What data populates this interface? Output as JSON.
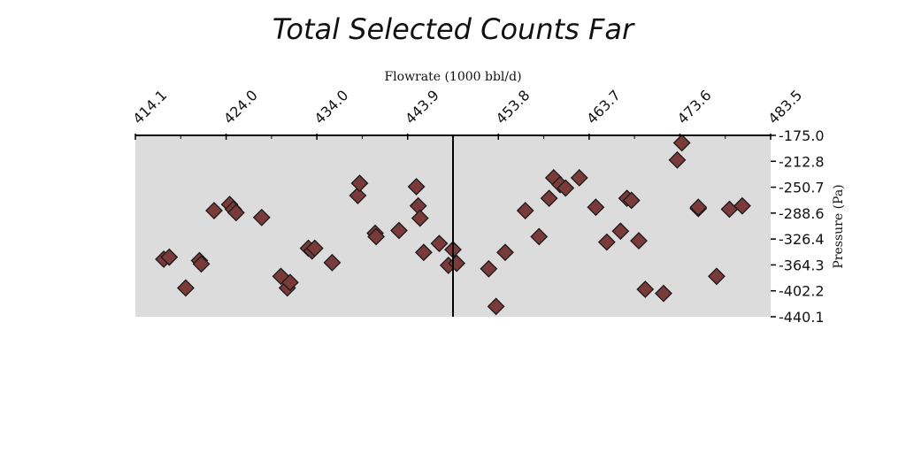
{
  "chart_data": {
    "type": "scatter",
    "title": "Total Selected Counts Far",
    "xlabel": "Flowrate (1000 bbl/d)",
    "ylabel": "Pressure (Pa)",
    "xlim": [
      414.1,
      483.5
    ],
    "ylim": [
      -440.1,
      -175.0
    ],
    "x_ticks": [
      "414.1",
      "424.0",
      "434.0",
      "443.9",
      "453.8",
      "463.7",
      "473.6",
      "483.5"
    ],
    "y_ticks": [
      "-175.0",
      "-212.8",
      "-250.7",
      "-288.6",
      "-326.4",
      "-364.3",
      "-402.2",
      "-440.1"
    ],
    "x_axis_position": "top",
    "y_axis_position": "right",
    "vline_x": 448.8,
    "marker": "diamond",
    "marker_color": "#7a3a3a",
    "marker_edge": "#1a1a1a",
    "plot_bg": "#dcdcdc",
    "points": [
      {
        "x": 417.2,
        "y": -356
      },
      {
        "x": 417.8,
        "y": -353
      },
      {
        "x": 419.6,
        "y": -398
      },
      {
        "x": 421.1,
        "y": -358
      },
      {
        "x": 421.3,
        "y": -363
      },
      {
        "x": 422.7,
        "y": -285
      },
      {
        "x": 424.4,
        "y": -276
      },
      {
        "x": 424.8,
        "y": -283
      },
      {
        "x": 425.1,
        "y": -288
      },
      {
        "x": 427.9,
        "y": -295
      },
      {
        "x": 430.0,
        "y": -381
      },
      {
        "x": 430.7,
        "y": -398
      },
      {
        "x": 431.0,
        "y": -390
      },
      {
        "x": 433.0,
        "y": -340
      },
      {
        "x": 433.4,
        "y": -344
      },
      {
        "x": 433.7,
        "y": -340
      },
      {
        "x": 435.6,
        "y": -361
      },
      {
        "x": 438.4,
        "y": -263
      },
      {
        "x": 438.6,
        "y": -245
      },
      {
        "x": 440.3,
        "y": -318
      },
      {
        "x": 440.4,
        "y": -323
      },
      {
        "x": 442.9,
        "y": -314
      },
      {
        "x": 444.8,
        "y": -250
      },
      {
        "x": 445.0,
        "y": -278
      },
      {
        "x": 445.2,
        "y": -296
      },
      {
        "x": 445.6,
        "y": -346
      },
      {
        "x": 447.3,
        "y": -333
      },
      {
        "x": 448.3,
        "y": -365
      },
      {
        "x": 448.8,
        "y": -342
      },
      {
        "x": 449.2,
        "y": -362
      },
      {
        "x": 452.7,
        "y": -370
      },
      {
        "x": 453.5,
        "y": -425
      },
      {
        "x": 454.5,
        "y": -346
      },
      {
        "x": 456.7,
        "y": -285
      },
      {
        "x": 458.2,
        "y": -323
      },
      {
        "x": 459.3,
        "y": -267
      },
      {
        "x": 459.8,
        "y": -237
      },
      {
        "x": 460.5,
        "y": -247
      },
      {
        "x": 461.1,
        "y": -252
      },
      {
        "x": 462.6,
        "y": -237
      },
      {
        "x": 464.4,
        "y": -280
      },
      {
        "x": 465.6,
        "y": -331
      },
      {
        "x": 467.1,
        "y": -315
      },
      {
        "x": 467.8,
        "y": -267
      },
      {
        "x": 468.3,
        "y": -270
      },
      {
        "x": 469.1,
        "y": -329
      },
      {
        "x": 469.8,
        "y": -400
      },
      {
        "x": 471.8,
        "y": -406
      },
      {
        "x": 473.3,
        "y": -211
      },
      {
        "x": 473.8,
        "y": -186
      },
      {
        "x": 475.6,
        "y": -282
      },
      {
        "x": 475.6,
        "y": -280
      },
      {
        "x": 477.6,
        "y": -381
      },
      {
        "x": 479.0,
        "y": -283
      },
      {
        "x": 480.4,
        "y": -278
      }
    ]
  }
}
